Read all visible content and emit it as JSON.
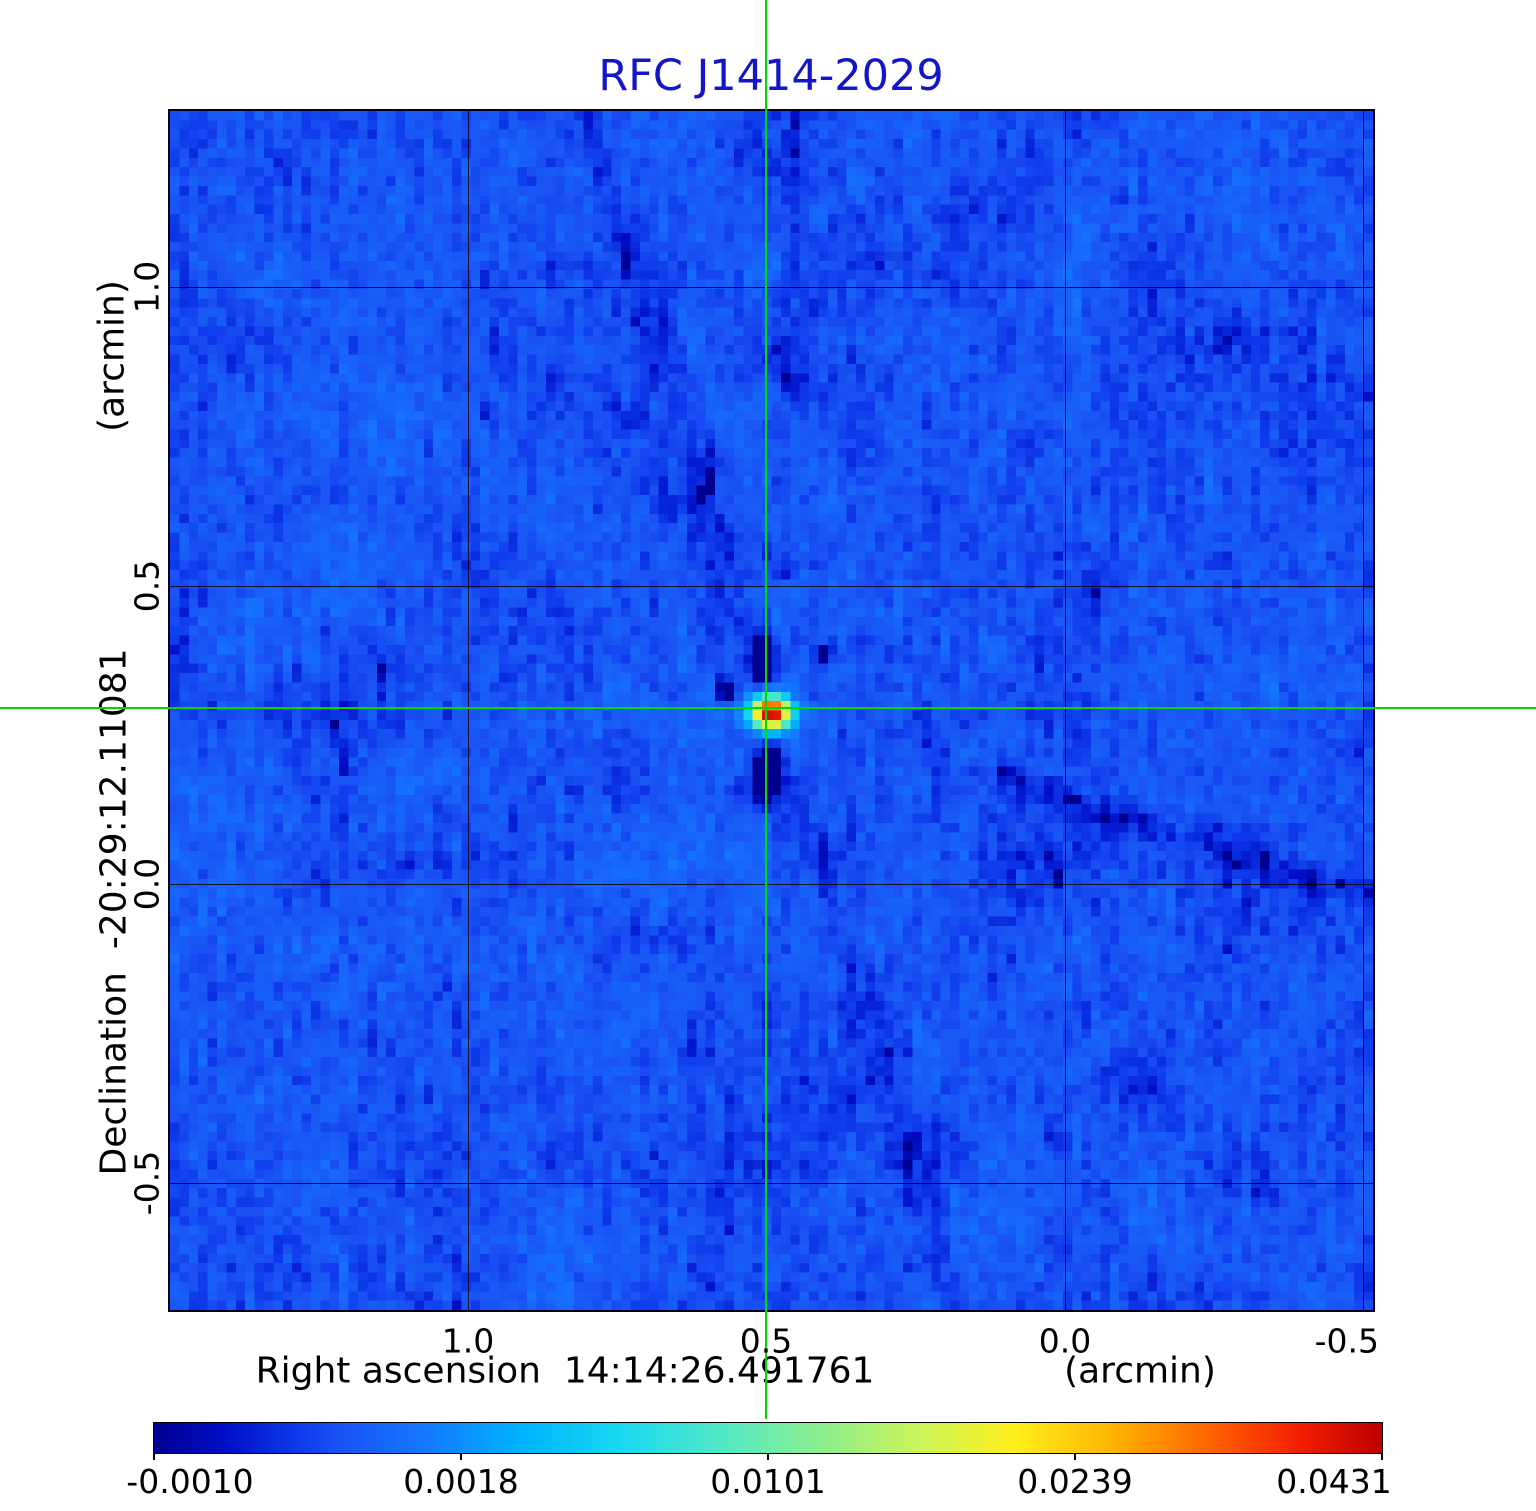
{
  "title": {
    "text": "RFC J1414-2029",
    "color": "#1414cc"
  },
  "chart_data": {
    "type": "heatmap",
    "title": "RFC J1414-2029",
    "title_color": "#1414cc",
    "xlabel": "Right ascension  14:14:26.491761",
    "xlabel_unit": "(arcmin)",
    "ylabel": "Declination  -20:29:12.11081",
    "ylabel_unit": "(arcmin)",
    "xlim": [
      1.5,
      -0.517
    ],
    "ylim": [
      -0.713,
      1.295
    ],
    "x_ticks": [
      {
        "value": 1.0,
        "label": "1.0"
      },
      {
        "value": 0.5,
        "label": "0.5"
      },
      {
        "value": 0.0,
        "label": "0.0"
      },
      {
        "value": -0.5,
        "label": "-0.5"
      }
    ],
    "y_ticks": [
      {
        "value": 1.0,
        "label": "1.0"
      },
      {
        "value": 0.5,
        "label": "0.5"
      },
      {
        "value": 0.0,
        "label": "0.0"
      },
      {
        "value": -0.5,
        "label": "-0.5"
      }
    ],
    "grid": true,
    "grid_color": "#000014",
    "crosshair": {
      "x": 0.5,
      "y": 0.295,
      "color": "#00d800"
    },
    "source": {
      "x": 0.5,
      "y": 0.295,
      "peak": 0.0431
    },
    "stretch": "sqrt",
    "vmin": -0.001,
    "vmax": 0.0431,
    "colormap_stops": [
      [
        0.0,
        "#000090"
      ],
      [
        0.06,
        "#0010c8"
      ],
      [
        0.12,
        "#0f3cec"
      ],
      [
        0.15,
        "#1a52f4"
      ],
      [
        0.22,
        "#1478ff"
      ],
      [
        0.3,
        "#00b4ff"
      ],
      [
        0.38,
        "#18d8f0"
      ],
      [
        0.46,
        "#50e8c8"
      ],
      [
        0.54,
        "#8aee90"
      ],
      [
        0.62,
        "#c8f45c"
      ],
      [
        0.7,
        "#fff01e"
      ],
      [
        0.78,
        "#ffb400"
      ],
      [
        0.86,
        "#ff6400"
      ],
      [
        0.93,
        "#f42000"
      ],
      [
        1.0,
        "#be0000"
      ]
    ],
    "colorbar": {
      "tick_labels": [
        "-0.0010",
        "0.0018",
        "0.0101",
        "0.0239",
        "0.0431"
      ],
      "tick_values": [
        -0.001,
        0.0018,
        0.0101,
        0.0239,
        0.0431
      ]
    },
    "image": {
      "grid_n": 128,
      "seed": 77,
      "background_level": 0.0,
      "noise_coarse_sigma": 0.00022,
      "noise_fine_sigma": 0.0003,
      "blobs": [
        {
          "dx": 0,
          "dy": 0,
          "sx": 1.15,
          "sy": 0.95,
          "amp": 0.0431
        },
        {
          "dx": 0,
          "dy": 0,
          "sx": 2.6,
          "sy": 2.2,
          "amp": 0.0016
        },
        {
          "dx": -0.9,
          "dy": -5.5,
          "sx": 0.9,
          "sy": 2.0,
          "amp": -0.0031
        },
        {
          "dx": -0.6,
          "dy": 6.5,
          "sx": 0.9,
          "sy": 2.3,
          "amp": -0.0027
        },
        {
          "dx": -4.6,
          "dy": -2.3,
          "sx": 0.8,
          "sy": 0.8,
          "amp": -0.0022
        },
        {
          "dx": 5.6,
          "dy": -6.3,
          "sx": 0.8,
          "sy": 0.8,
          "amp": -0.0017
        }
      ],
      "rays": [
        {
          "axis": "v",
          "slope": 0.309,
          "amp": -0.0006,
          "width": 1.4
        },
        {
          "axis": "h",
          "slope": 0.302,
          "amp": -0.00066,
          "width": 1.2,
          "win": [
            24,
            68
          ]
        },
        {
          "axis": "v",
          "slope": -0.04,
          "amp": -0.00042,
          "width": 1.0,
          "win": [
            -64,
            -14
          ]
        }
      ]
    }
  }
}
